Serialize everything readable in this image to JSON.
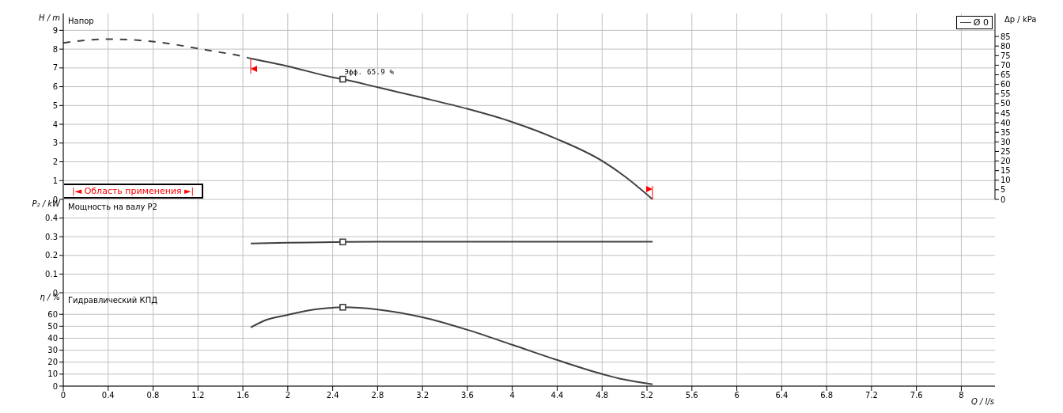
{
  "chart_data": [
    {
      "type": "line",
      "title": "Напор",
      "ylabel": "H / m",
      "y2label": "Δp / kPa",
      "xlim": [
        0,
        8.3
      ],
      "xticks": [
        0,
        0.4,
        0.8,
        1.2,
        1.6,
        2,
        2.4,
        2.8,
        3.2,
        3.6,
        4,
        4.4,
        4.8,
        5.2,
        5.6,
        6,
        6.4,
        6.8,
        7.2,
        7.6,
        8
      ],
      "ylim": [
        0,
        9.9
      ],
      "yticks": [
        0,
        1,
        2,
        3,
        4,
        5,
        6,
        7,
        8,
        9
      ],
      "y2lim": [
        0,
        97
      ],
      "y2ticks": [
        0,
        5,
        10,
        15,
        20,
        25,
        30,
        35,
        40,
        45,
        50,
        55,
        60,
        65,
        70,
        75,
        80,
        85
      ],
      "grid": true,
      "tick_labels": "y",
      "legend": "top right",
      "marker": "none",
      "annotations": [
        {
          "text": "Эфф. 65.9 %",
          "x": 2.49,
          "y": 6.4
        },
        "|◄ Область применения ►|"
      ],
      "series": [
        {
          "color": "#404040",
          "line_style": "dashed",
          "x": [
            0,
            0.2,
            0.4,
            0.6,
            0.8,
            1.0,
            1.2,
            1.4,
            1.6,
            1.67
          ],
          "values": [
            8.33,
            8.47,
            8.53,
            8.5,
            8.4,
            8.24,
            8.03,
            7.83,
            7.61,
            7.5
          ]
        },
        {
          "name": "Ø 0",
          "color": "#404040",
          "line_style": "solid",
          "x": [
            1.67,
            2.0,
            2.4,
            2.49,
            2.8,
            3.2,
            3.6,
            4.0,
            4.4,
            4.8,
            5.0,
            5.25
          ],
          "values": [
            7.5,
            7.09,
            6.5,
            6.4,
            5.97,
            5.41,
            4.82,
            4.12,
            3.21,
            2.05,
            1.23,
            0
          ]
        },
        {
          "type": "scatter",
          "marker": "square",
          "color": "#404040",
          "x": [
            2.49
          ],
          "values": [
            6.4
          ]
        }
      ]
    },
    {
      "type": "line",
      "title": "Мощность на валу P2",
      "ylabel": "P₂ / kW",
      "xlim": [
        0,
        8.3
      ],
      "xticks": [
        0,
        0.4,
        0.8,
        1.2,
        1.6,
        2,
        2.4,
        2.8,
        3.2,
        3.6,
        4,
        4.4,
        4.8,
        5.2,
        5.6,
        6,
        6.4,
        6.8,
        7.2,
        7.6,
        8
      ],
      "ylim": [
        0,
        0.5
      ],
      "yticks": [
        0,
        0.1,
        0.2,
        0.3,
        0.4
      ],
      "grid": true,
      "tick_labels": "y",
      "marker": "none",
      "series": [
        {
          "color": "#404040",
          "line_style": "solid",
          "x": [
            1.67,
            2.0,
            2.4,
            2.49,
            3.0,
            4.0,
            5.25
          ],
          "values": [
            0.264,
            0.268,
            0.271,
            0.272,
            0.273,
            0.273,
            0.273
          ]
        },
        {
          "type": "scatter",
          "marker": "square",
          "color": "#404040",
          "x": [
            2.49
          ],
          "values": [
            0.272
          ]
        }
      ]
    },
    {
      "type": "line",
      "title": "Гидравлический КПД",
      "ylabel": "η / %",
      "xlabel": "Q / l/s",
      "xlim": [
        0,
        8.3
      ],
      "xticks": [
        0,
        0.4,
        0.8,
        1.2,
        1.6,
        2,
        2.4,
        2.8,
        3.2,
        3.6,
        4,
        4.4,
        4.8,
        5.2,
        5.6,
        6,
        6.4,
        6.8,
        7.2,
        7.6,
        8
      ],
      "ylim": [
        0,
        78
      ],
      "yticks": [
        0,
        10,
        20,
        30,
        40,
        50,
        60
      ],
      "grid": true,
      "marker": "none",
      "series": [
        {
          "color": "#404040",
          "line_style": "solid",
          "x": [
            1.67,
            1.8,
            2.0,
            2.2,
            2.4,
            2.49,
            2.8,
            3.2,
            3.6,
            4.0,
            4.4,
            4.8,
            5.0,
            5.25
          ],
          "values": [
            49,
            55,
            59.5,
            63.5,
            65.5,
            65.9,
            64,
            57.5,
            47,
            34.5,
            21.8,
            10.1,
            5.4,
            1.5
          ]
        },
        {
          "type": "scatter",
          "marker": "square",
          "color": "#404040",
          "x": [
            2.49
          ],
          "values": [
            65.9
          ]
        }
      ]
    }
  ]
}
